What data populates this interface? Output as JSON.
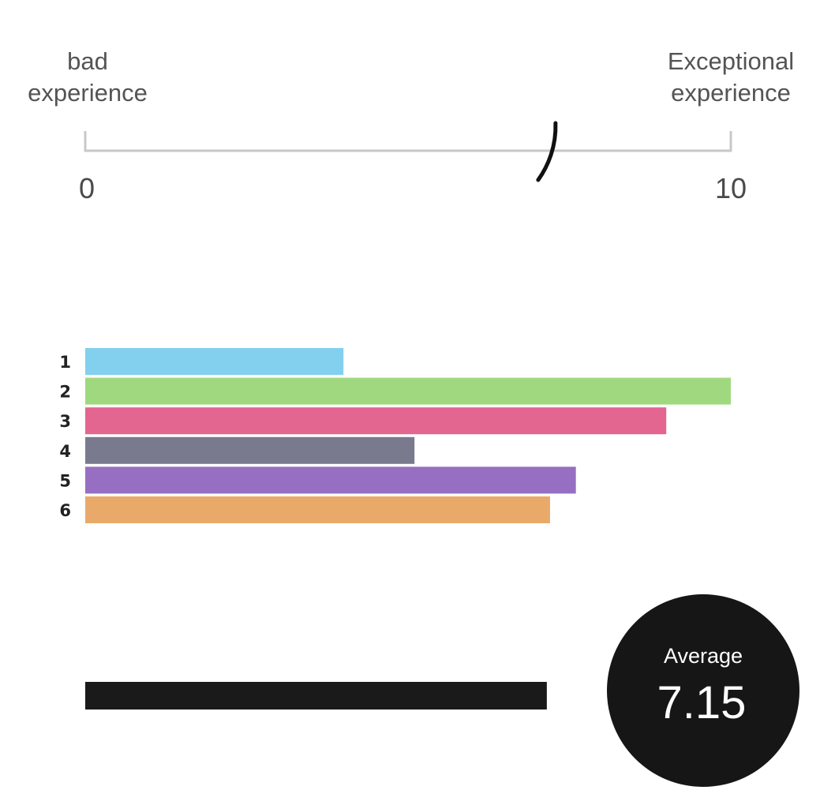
{
  "chart_data": {
    "type": "bar",
    "orientation": "horizontal",
    "scale": {
      "min": 0,
      "max": 10,
      "min_label": "0",
      "max_label": "10",
      "low_caption": [
        "bad",
        "experience"
      ],
      "high_caption": [
        "Exceptional",
        "experience"
      ],
      "marker_value": 7.15
    },
    "categories": [
      "1",
      "2",
      "3",
      "4",
      "5",
      "6"
    ],
    "values": [
      4.0,
      10.0,
      9.0,
      5.1,
      7.6,
      7.2
    ],
    "colors": [
      "#82d0ed",
      "#a0d880",
      "#e2668f",
      "#7a7a8e",
      "#976fc2",
      "#e9aa69"
    ],
    "average": {
      "label": "Average",
      "value": 7.15,
      "display": "7.15",
      "bar_color": "#1a1a1a"
    },
    "xlim": [
      0,
      10
    ]
  }
}
